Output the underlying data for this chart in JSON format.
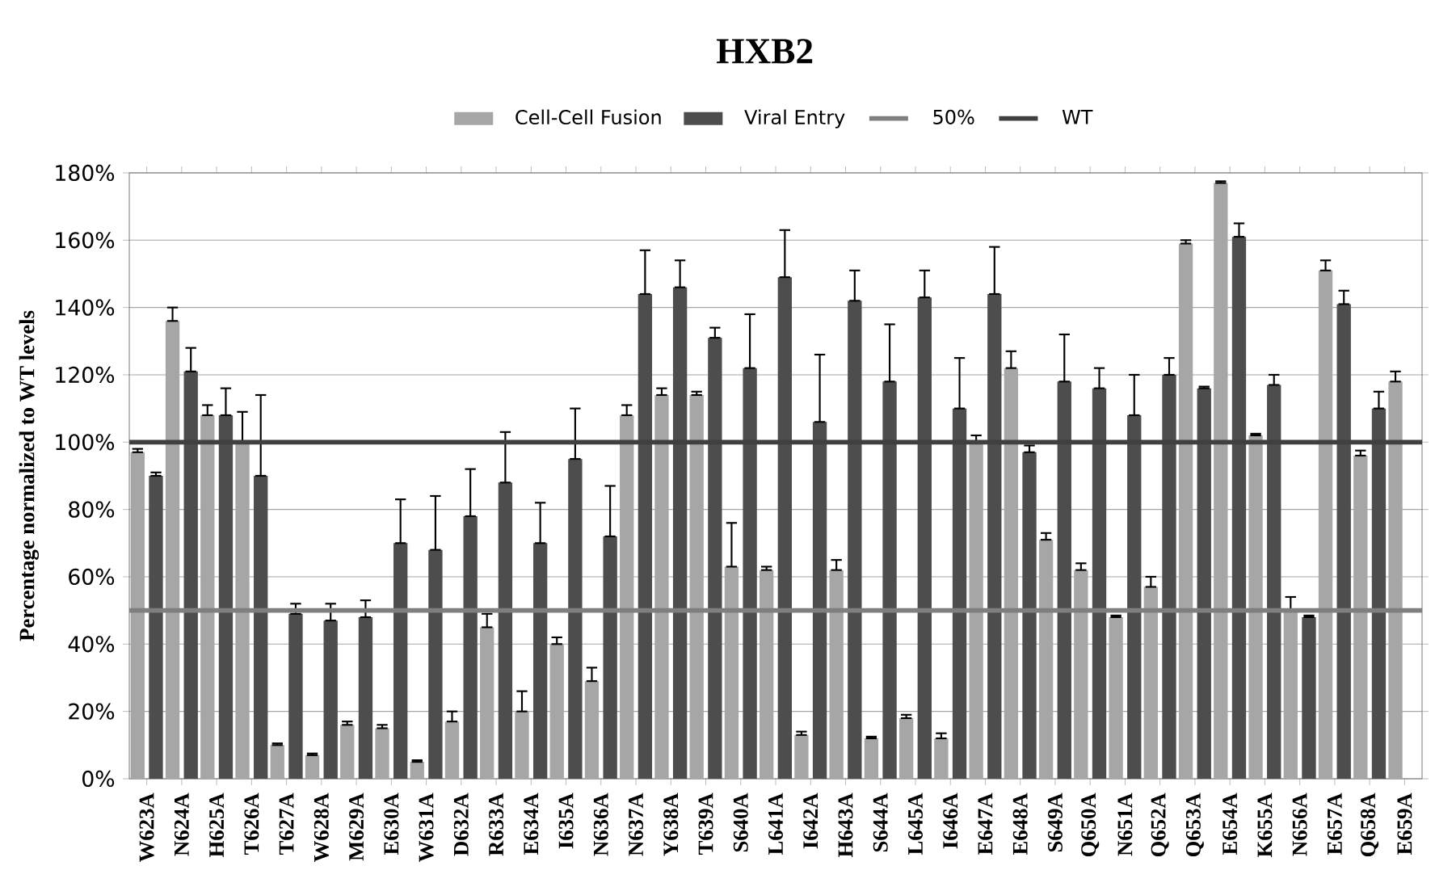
{
  "chart_data": {
    "type": "bar",
    "title": "HXB2",
    "ylabel": "Percentage normalized to WT levels",
    "categories": [
      "W623A",
      "N624A",
      "H625A",
      "T626A",
      "T627A",
      "W628A",
      "M629A",
      "E630A",
      "W631A",
      "D632A",
      "R633A",
      "E634A",
      "I635A",
      "N636A",
      "N637A",
      "Y638A",
      "T639A",
      "S640A",
      "L641A",
      "I642A",
      "H643A",
      "S644A",
      "L645A",
      "I646A",
      "E647A",
      "E648A",
      "S649A",
      "Q650A",
      "N651A",
      "Q652A",
      "Q653A",
      "E654A",
      "K655A",
      "N656A",
      "E657A",
      "Q658A",
      "E659A"
    ],
    "series": [
      {
        "name": "Cell-Cell Fusion",
        "color": "#a6a6a6",
        "values": [
          97,
          136,
          108,
          100,
          10,
          7,
          16,
          15,
          5,
          17,
          45,
          20,
          40,
          29,
          108,
          114,
          114,
          63,
          62,
          13,
          62,
          12,
          18,
          12,
          100,
          122,
          71,
          62,
          48,
          57,
          159,
          177,
          102,
          50,
          151,
          96,
          118
        ],
        "errors": [
          [
            97,
            98
          ],
          [
            136,
            140
          ],
          [
            108,
            111
          ],
          [
            100,
            109
          ],
          [
            10,
            10.5
          ],
          [
            7,
            7.5
          ],
          [
            16,
            17
          ],
          [
            15,
            16
          ],
          [
            5,
            5.5
          ],
          [
            17,
            20
          ],
          [
            45,
            49
          ],
          [
            20,
            26
          ],
          [
            40,
            42
          ],
          [
            29,
            33
          ],
          [
            108,
            111
          ],
          [
            114,
            116
          ],
          [
            114,
            115
          ],
          [
            63,
            76
          ],
          [
            62,
            63
          ],
          [
            13,
            14
          ],
          [
            62,
            65
          ],
          [
            12,
            12.5
          ],
          [
            18,
            19
          ],
          [
            12,
            13.5
          ],
          [
            100,
            102
          ],
          [
            122,
            127
          ],
          [
            71,
            73
          ],
          [
            62,
            64
          ],
          [
            48,
            48.5
          ],
          [
            57,
            60
          ],
          [
            159,
            160
          ],
          [
            177,
            177.5
          ],
          [
            102,
            102.5
          ],
          [
            50,
            54
          ],
          [
            151,
            154
          ],
          [
            96,
            97.5
          ],
          [
            118,
            121
          ]
        ]
      },
      {
        "name": "Viral Entry",
        "color": "#4d4d4d",
        "values": [
          90,
          121,
          108,
          90,
          49,
          47,
          48,
          70,
          68,
          78,
          88,
          70,
          95,
          72,
          144,
          146,
          131,
          122,
          149,
          106,
          142,
          118,
          143,
          110,
          144,
          97,
          118,
          116,
          108,
          120,
          116,
          161,
          117,
          48,
          141,
          110,
          null
        ],
        "errors": [
          [
            90,
            91
          ],
          [
            121,
            128
          ],
          [
            108,
            116
          ],
          [
            90,
            114
          ],
          [
            49,
            52
          ],
          [
            47,
            52
          ],
          [
            48,
            53
          ],
          [
            70,
            83
          ],
          [
            68,
            84
          ],
          [
            78,
            92
          ],
          [
            88,
            103
          ],
          [
            70,
            82
          ],
          [
            95,
            110
          ],
          [
            72,
            87
          ],
          [
            144,
            157
          ],
          [
            146,
            154
          ],
          [
            131,
            134
          ],
          [
            122,
            138
          ],
          [
            149,
            163
          ],
          [
            106,
            126
          ],
          [
            142,
            151
          ],
          [
            118,
            135
          ],
          [
            143,
            151
          ],
          [
            110,
            125
          ],
          [
            144,
            158
          ],
          [
            97,
            99
          ],
          [
            118,
            132
          ],
          [
            116,
            122
          ],
          [
            108,
            120
          ],
          [
            120,
            125
          ],
          [
            116,
            116.5
          ],
          [
            161,
            165
          ],
          [
            117,
            120
          ],
          [
            48,
            48.5
          ],
          [
            141,
            145
          ],
          [
            110,
            115
          ],
          null
        ]
      }
    ],
    "ylim": [
      0,
      180
    ],
    "yticks": [
      {
        "value": 0,
        "label": "0%"
      },
      {
        "value": 20,
        "label": "20%"
      },
      {
        "value": 40,
        "label": "40%"
      },
      {
        "value": 60,
        "label": "60%"
      },
      {
        "value": 80,
        "label": "80%"
      },
      {
        "value": 100,
        "label": "100%"
      },
      {
        "value": 120,
        "label": "120%"
      },
      {
        "value": 140,
        "label": "140%"
      },
      {
        "value": 160,
        "label": "160%"
      },
      {
        "value": 180,
        "label": "180%"
      }
    ],
    "ref_lines": [
      {
        "axis": "y",
        "value": 50,
        "label": "50%",
        "color": "#7f7f7f"
      },
      {
        "axis": "y",
        "value": 100,
        "label": "WT",
        "color": "#404040"
      }
    ],
    "grid": "y",
    "legend": "top"
  }
}
